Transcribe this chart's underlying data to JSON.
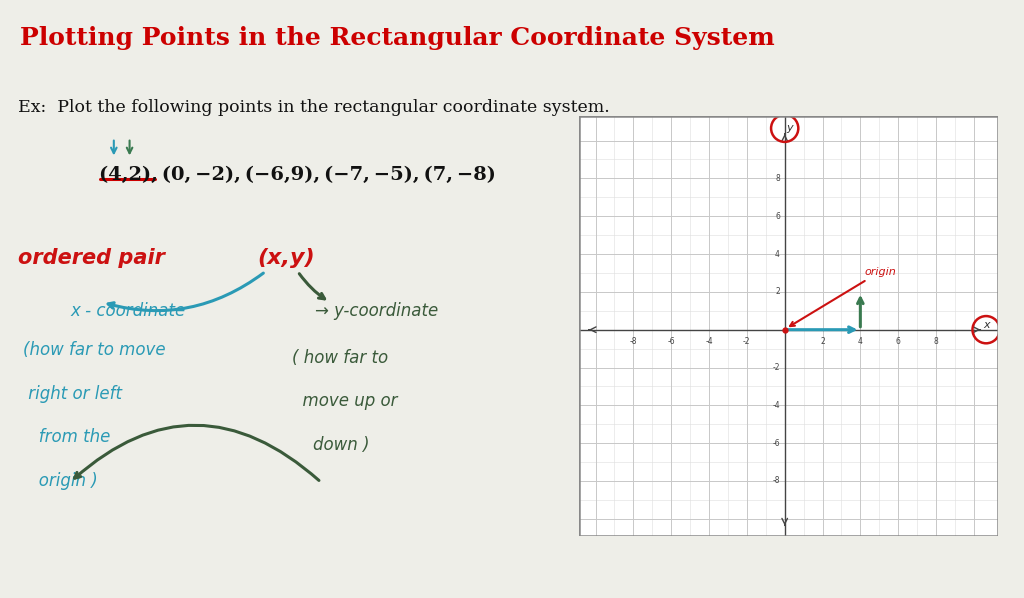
{
  "bg_color": "#eeeee8",
  "title": "Plotting Points in the Rectangular Coordinate System",
  "title_color": "#cc0000",
  "title_fontsize": 18,
  "ex_text": "Ex:  Plot the following points in the rectangular coordinate system.",
  "points_text": "(4,2), (0, −2), (−6,9), (−7, −5), (7, −8)",
  "ordered_pair_label": "ordered pair",
  "xy_label": "(x,y)",
  "x_coord_label": "x - coordinate",
  "x_coord_desc1": "(how far to move",
  "x_coord_desc2": " right or left",
  "x_coord_desc3": "   from the",
  "x_coord_desc4": "   origin )",
  "y_coord_label": "→ y-coordinate",
  "y_coord_desc1": "( how far to",
  "y_coord_desc2": "  move up or",
  "y_coord_desc3": "    down )",
  "origin_label": "origin",
  "grid_color": "#c8c8c8",
  "minor_grid_color": "#dedede",
  "red_color": "#cc1111",
  "teal_color": "#2a9ab5",
  "green_color": "#3a7a50",
  "dark_green_color": "#3a5a3a",
  "axis_ticks": [
    -8,
    -6,
    -4,
    -2,
    2,
    4,
    6,
    8
  ],
  "underline_color": "#cc0000",
  "white": "#ffffff",
  "black": "#222222"
}
